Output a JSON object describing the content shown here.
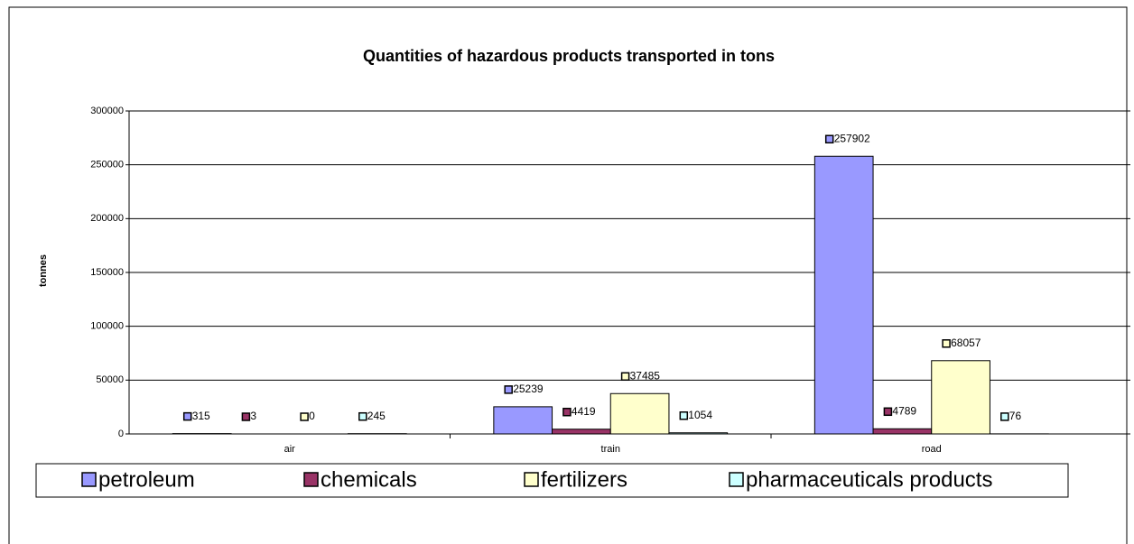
{
  "chart_data": {
    "type": "bar",
    "title": "Quantities of hazardous products transported in tons",
    "y_label": "tonnes",
    "categories": [
      "air",
      "train",
      "road"
    ],
    "series": [
      {
        "name": "petroleum",
        "color": "#9999ff",
        "values": [
          315,
          25239,
          257902
        ]
      },
      {
        "name": "chemicals",
        "color": "#993366",
        "values": [
          3,
          4419,
          4789
        ]
      },
      {
        "name": "fertilizers",
        "color": "#ffffcc",
        "values": [
          0,
          37485,
          68057
        ]
      },
      {
        "name": "pharmaceuticals products",
        "color": "#ccffff",
        "values": [
          245,
          1054,
          76
        ]
      }
    ],
    "ylim": [
      0,
      300000
    ],
    "yticks": [
      0,
      50000,
      100000,
      150000,
      200000,
      250000,
      300000
    ],
    "grid": true,
    "legend": "bottom",
    "data_labels": true
  }
}
